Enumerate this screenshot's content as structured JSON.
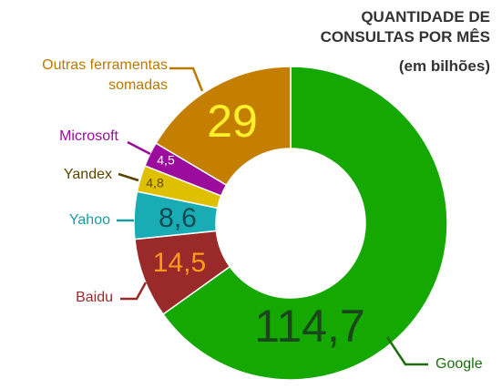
{
  "chart_data": {
    "type": "donut",
    "title": "QUANTIDADE DE CONSULTAS POR MÊS",
    "subtitle": "(em bilhões)",
    "categories": [
      "Google",
      "Baidu",
      "Yahoo",
      "Yandex",
      "Microsoft",
      "Outras ferramentas somadas"
    ],
    "values": [
      114.7,
      14.5,
      8.6,
      4.8,
      4.5,
      29
    ],
    "value_labels": [
      "114,7",
      "14,5",
      "8,6",
      "4,8",
      "4,5",
      "29"
    ],
    "colors": [
      "#14a800",
      "#9a2a2a",
      "#1aacb5",
      "#dfc000",
      "#9c0c9c",
      "#c47f00"
    ]
  }
}
